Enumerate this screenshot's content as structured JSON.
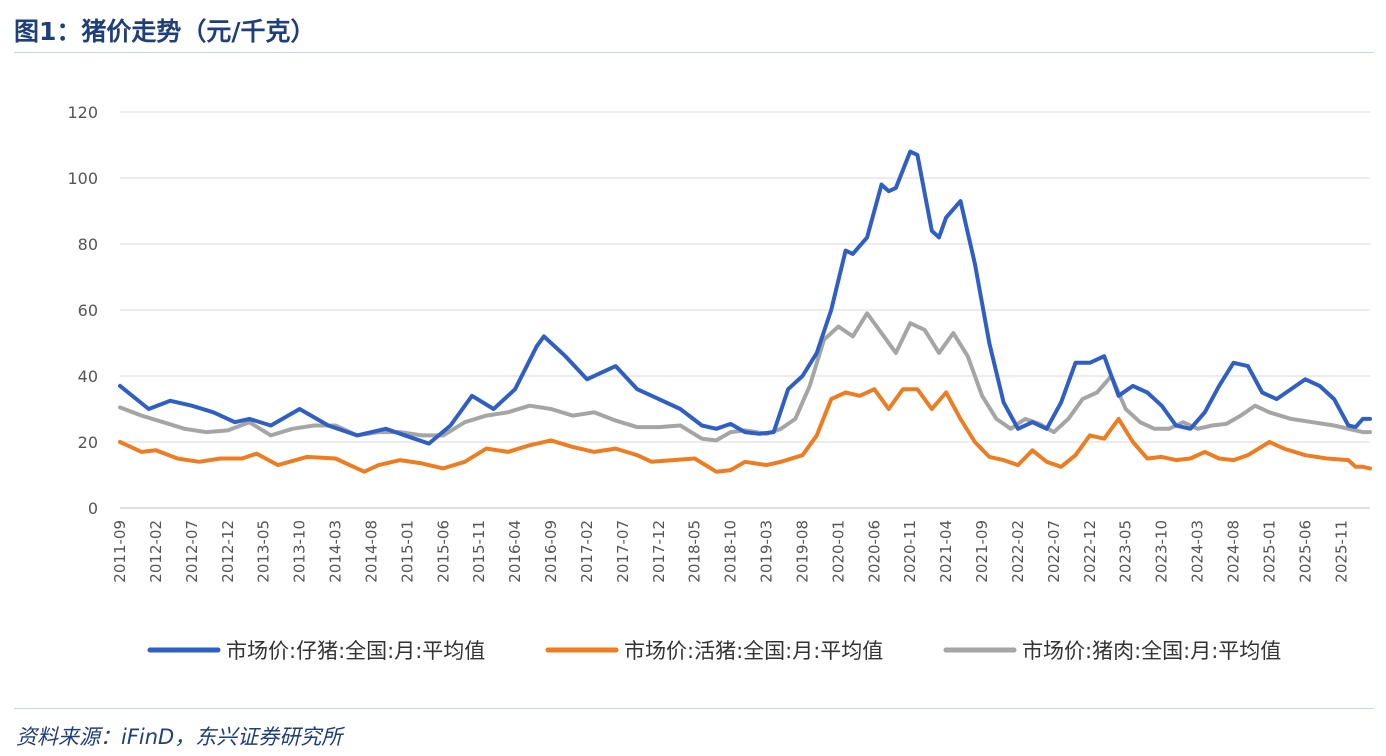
{
  "figure": {
    "title": "图1：猪价走势（元/千克）",
    "source": "资料来源：iFinD，东兴证券研究所"
  },
  "colors": {
    "blue": "#2f5fc4",
    "orange": "#ee7d22",
    "gray": "#a5a5a5",
    "grid": "#d9d9d9",
    "axis_text": "#555555"
  },
  "chart_data": {
    "type": "line",
    "title": "图1：猪价走势（元/千克）",
    "xlabel": "",
    "ylabel": "",
    "ylim": [
      0,
      120
    ],
    "yticks": [
      0,
      20,
      40,
      60,
      80,
      100,
      120
    ],
    "x_start": "2011-09",
    "x_end": "2026-03",
    "xtick_labels": [
      "2011-09",
      "2012-02",
      "2012-07",
      "2012-12",
      "2013-05",
      "2013-10",
      "2014-03",
      "2014-08",
      "2015-01",
      "2015-06",
      "2015-11",
      "2016-04",
      "2016-09",
      "2017-02",
      "2017-07",
      "2017-12",
      "2018-05",
      "2018-10",
      "2019-03",
      "2019-08",
      "2020-01",
      "2020-06",
      "2020-11",
      "2021-04",
      "2021-09",
      "2022-02",
      "2022-07",
      "2022-12",
      "2023-05",
      "2023-10",
      "2024-03",
      "2024-08",
      "2025-01",
      "2025-06",
      "2025-11"
    ],
    "grid": true,
    "legend_position": "bottom",
    "series": [
      {
        "name": "市场价:仔猪:全国:月:平均值",
        "color": "#2f5fc4",
        "points": [
          [
            "2011-09",
            37
          ],
          [
            "2012-01",
            30
          ],
          [
            "2012-04",
            32.5
          ],
          [
            "2012-07",
            31
          ],
          [
            "2012-10",
            29
          ],
          [
            "2013-01",
            26
          ],
          [
            "2013-03",
            27
          ],
          [
            "2013-06",
            25
          ],
          [
            "2013-10",
            30
          ],
          [
            "2014-02",
            25
          ],
          [
            "2014-06",
            22
          ],
          [
            "2014-10",
            24
          ],
          [
            "2015-02",
            21
          ],
          [
            "2015-04",
            19.5
          ],
          [
            "2015-07",
            25
          ],
          [
            "2015-10",
            34
          ],
          [
            "2016-01",
            30
          ],
          [
            "2016-04",
            36
          ],
          [
            "2016-07",
            49
          ],
          [
            "2016-08",
            52
          ],
          [
            "2016-11",
            46
          ],
          [
            "2017-02",
            39
          ],
          [
            "2017-04",
            41
          ],
          [
            "2017-06",
            43
          ],
          [
            "2017-09",
            36
          ],
          [
            "2017-12",
            33
          ],
          [
            "2018-03",
            30
          ],
          [
            "2018-06",
            25
          ],
          [
            "2018-08",
            24
          ],
          [
            "2018-10",
            25.5
          ],
          [
            "2018-12",
            23
          ],
          [
            "2019-02",
            22.5
          ],
          [
            "2019-04",
            23
          ],
          [
            "2019-06",
            36
          ],
          [
            "2019-08",
            40
          ],
          [
            "2019-10",
            47
          ],
          [
            "2019-12",
            60
          ],
          [
            "2020-02",
            78
          ],
          [
            "2020-03",
            77
          ],
          [
            "2020-05",
            82
          ],
          [
            "2020-07",
            98
          ],
          [
            "2020-08",
            96
          ],
          [
            "2020-09",
            97
          ],
          [
            "2020-11",
            108
          ],
          [
            "2020-12",
            107
          ],
          [
            "2021-02",
            84
          ],
          [
            "2021-03",
            82
          ],
          [
            "2021-04",
            88
          ],
          [
            "2021-06",
            93
          ],
          [
            "2021-08",
            74
          ],
          [
            "2021-10",
            50
          ],
          [
            "2021-12",
            32
          ],
          [
            "2022-02",
            24
          ],
          [
            "2022-04",
            26
          ],
          [
            "2022-06",
            24
          ],
          [
            "2022-08",
            32
          ],
          [
            "2022-10",
            44
          ],
          [
            "2022-12",
            44
          ],
          [
            "2023-02",
            46
          ],
          [
            "2023-04",
            34
          ],
          [
            "2023-06",
            37
          ],
          [
            "2023-08",
            35
          ],
          [
            "2023-10",
            31
          ],
          [
            "2023-12",
            25
          ],
          [
            "2024-02",
            24
          ],
          [
            "2024-04",
            29
          ],
          [
            "2024-06",
            37
          ],
          [
            "2024-08",
            44
          ],
          [
            "2024-10",
            43
          ],
          [
            "2024-12",
            35
          ],
          [
            "2025-02",
            33
          ],
          [
            "2025-06",
            39
          ],
          [
            "2025-08",
            37
          ],
          [
            "2025-10",
            33
          ],
          [
            "2025-12",
            25
          ],
          [
            "2026-01",
            24.5
          ],
          [
            "2026-02",
            27
          ],
          [
            "2026-03",
            27
          ]
        ]
      },
      {
        "name": "市场价:活猪:全国:月:平均值",
        "color": "#ee7d22",
        "points": [
          [
            "2011-09",
            20
          ],
          [
            "2011-12",
            17
          ],
          [
            "2012-02",
            17.5
          ],
          [
            "2012-05",
            15
          ],
          [
            "2012-08",
            14
          ],
          [
            "2012-11",
            15
          ],
          [
            "2013-02",
            15
          ],
          [
            "2013-04",
            16.5
          ],
          [
            "2013-07",
            13
          ],
          [
            "2013-11",
            15.5
          ],
          [
            "2014-03",
            15
          ],
          [
            "2014-06",
            12
          ],
          [
            "2014-07",
            11
          ],
          [
            "2014-09",
            13
          ],
          [
            "2014-12",
            14.5
          ],
          [
            "2015-03",
            13.5
          ],
          [
            "2015-06",
            12
          ],
          [
            "2015-09",
            14
          ],
          [
            "2015-12",
            18
          ],
          [
            "2016-03",
            17
          ],
          [
            "2016-06",
            19
          ],
          [
            "2016-09",
            20.5
          ],
          [
            "2016-12",
            18.5
          ],
          [
            "2017-03",
            17
          ],
          [
            "2017-06",
            18
          ],
          [
            "2017-09",
            16
          ],
          [
            "2017-11",
            14
          ],
          [
            "2018-02",
            14.5
          ],
          [
            "2018-05",
            15
          ],
          [
            "2018-08",
            11
          ],
          [
            "2018-10",
            11.5
          ],
          [
            "2018-12",
            14
          ],
          [
            "2019-03",
            13
          ],
          [
            "2019-05",
            14
          ],
          [
            "2019-08",
            16
          ],
          [
            "2019-10",
            22
          ],
          [
            "2019-12",
            33
          ],
          [
            "2020-02",
            35
          ],
          [
            "2020-04",
            34
          ],
          [
            "2020-06",
            36
          ],
          [
            "2020-08",
            30
          ],
          [
            "2020-10",
            36
          ],
          [
            "2020-12",
            36
          ],
          [
            "2021-02",
            30
          ],
          [
            "2021-04",
            35
          ],
          [
            "2021-06",
            27
          ],
          [
            "2021-08",
            20
          ],
          [
            "2021-10",
            15.5
          ],
          [
            "2021-12",
            14.5
          ],
          [
            "2022-02",
            13
          ],
          [
            "2022-04",
            17.5
          ],
          [
            "2022-06",
            14
          ],
          [
            "2022-08",
            12.5
          ],
          [
            "2022-10",
            16
          ],
          [
            "2022-12",
            22
          ],
          [
            "2023-02",
            21
          ],
          [
            "2023-04",
            27
          ],
          [
            "2023-06",
            20
          ],
          [
            "2023-08",
            15
          ],
          [
            "2023-10",
            15.5
          ],
          [
            "2023-12",
            14.5
          ],
          [
            "2024-02",
            15
          ],
          [
            "2024-04",
            17
          ],
          [
            "2024-06",
            15
          ],
          [
            "2024-08",
            14.5
          ],
          [
            "2024-10",
            16
          ],
          [
            "2025-01",
            20
          ],
          [
            "2025-03",
            18
          ],
          [
            "2025-06",
            16
          ],
          [
            "2025-09",
            15
          ],
          [
            "2025-12",
            14.5
          ],
          [
            "2026-01",
            12.5
          ],
          [
            "2026-02",
            12.5
          ],
          [
            "2026-03",
            12
          ]
        ]
      },
      {
        "name": "市场价:猪肉:全国:月:平均值",
        "color": "#a5a5a5",
        "points": [
          [
            "2011-09",
            30.5
          ],
          [
            "2011-12",
            28
          ],
          [
            "2012-03",
            26
          ],
          [
            "2012-06",
            24
          ],
          [
            "2012-09",
            23
          ],
          [
            "2012-12",
            23.5
          ],
          [
            "2013-03",
            26
          ],
          [
            "2013-06",
            22
          ],
          [
            "2013-09",
            24
          ],
          [
            "2013-12",
            25
          ],
          [
            "2014-03",
            25
          ],
          [
            "2014-06",
            22
          ],
          [
            "2014-09",
            23
          ],
          [
            "2014-12",
            23
          ],
          [
            "2015-03",
            22
          ],
          [
            "2015-06",
            22
          ],
          [
            "2015-09",
            26
          ],
          [
            "2015-12",
            28
          ],
          [
            "2016-03",
            29
          ],
          [
            "2016-06",
            31
          ],
          [
            "2016-09",
            30
          ],
          [
            "2016-12",
            28
          ],
          [
            "2017-03",
            29
          ],
          [
            "2017-06",
            26.5
          ],
          [
            "2017-09",
            24.5
          ],
          [
            "2017-12",
            24.5
          ],
          [
            "2018-03",
            25
          ],
          [
            "2018-06",
            21
          ],
          [
            "2018-08",
            20.5
          ],
          [
            "2018-10",
            23
          ],
          [
            "2018-12",
            23.5
          ],
          [
            "2019-03",
            22.5
          ],
          [
            "2019-05",
            24
          ],
          [
            "2019-07",
            27
          ],
          [
            "2019-09",
            37
          ],
          [
            "2019-11",
            51
          ],
          [
            "2020-01",
            55
          ],
          [
            "2020-03",
            52
          ],
          [
            "2020-05",
            59
          ],
          [
            "2020-07",
            53
          ],
          [
            "2020-09",
            47
          ],
          [
            "2020-11",
            56
          ],
          [
            "2021-01",
            54
          ],
          [
            "2021-03",
            47
          ],
          [
            "2021-05",
            53
          ],
          [
            "2021-07",
            46
          ],
          [
            "2021-09",
            34
          ],
          [
            "2021-11",
            27
          ],
          [
            "2022-01",
            24
          ],
          [
            "2022-03",
            27
          ],
          [
            "2022-05",
            25.5
          ],
          [
            "2022-07",
            23
          ],
          [
            "2022-09",
            27
          ],
          [
            "2022-11",
            33
          ],
          [
            "2023-01",
            35
          ],
          [
            "2023-03",
            40
          ],
          [
            "2023-05",
            30
          ],
          [
            "2023-07",
            26
          ],
          [
            "2023-09",
            24
          ],
          [
            "2023-11",
            24
          ],
          [
            "2024-01",
            26
          ],
          [
            "2024-03",
            24
          ],
          [
            "2024-05",
            25
          ],
          [
            "2024-07",
            25.5
          ],
          [
            "2024-09",
            28
          ],
          [
            "2024-11",
            31
          ],
          [
            "2025-01",
            29
          ],
          [
            "2025-04",
            27
          ],
          [
            "2025-07",
            26
          ],
          [
            "2025-10",
            25
          ],
          [
            "2026-01",
            23.5
          ],
          [
            "2026-02",
            23
          ],
          [
            "2026-03",
            23
          ]
        ]
      }
    ]
  }
}
